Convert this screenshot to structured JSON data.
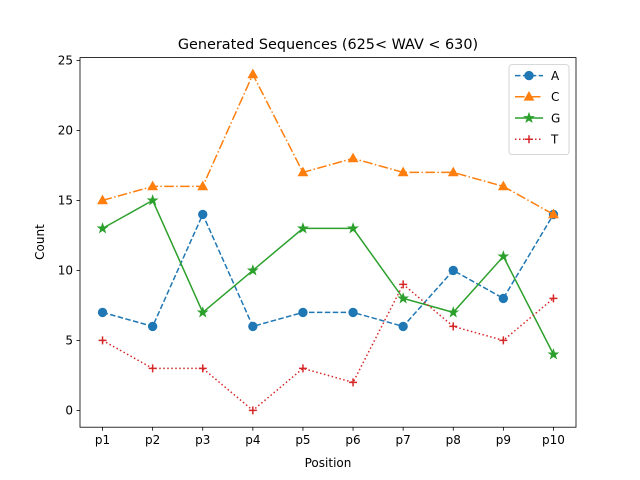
{
  "chart_data": {
    "type": "line",
    "title": "Generated Sequences (625< WAV < 630)",
    "xlabel": "Position",
    "ylabel": "Count",
    "categories": [
      "p1",
      "p2",
      "p3",
      "p4",
      "p5",
      "p6",
      "p7",
      "p8",
      "p9",
      "p10"
    ],
    "ylim": [
      -1.2,
      25.2
    ],
    "yticks": [
      0,
      5,
      10,
      15,
      20,
      25
    ],
    "grid": false,
    "legend_position": "top-right",
    "series": [
      {
        "name": "A",
        "color": "#1f77b4",
        "linestyle": "dashed",
        "marker": "circle",
        "values": [
          7,
          6,
          14,
          6,
          7,
          7,
          6,
          10,
          8,
          14
        ]
      },
      {
        "name": "C",
        "color": "#ff7f0e",
        "linestyle": "dashdot",
        "marker": "triangle",
        "values": [
          15,
          16,
          16,
          24,
          17,
          18,
          17,
          17,
          16,
          14
        ]
      },
      {
        "name": "G",
        "color": "#2ca02c",
        "linestyle": "solid",
        "marker": "star",
        "values": [
          13,
          15,
          7,
          10,
          13,
          13,
          8,
          7,
          11,
          4
        ]
      },
      {
        "name": "T",
        "color": "#d62728",
        "linestyle": "dotted",
        "marker": "plus",
        "values": [
          5,
          3,
          3,
          0,
          3,
          2,
          9,
          6,
          5,
          8
        ]
      }
    ]
  }
}
